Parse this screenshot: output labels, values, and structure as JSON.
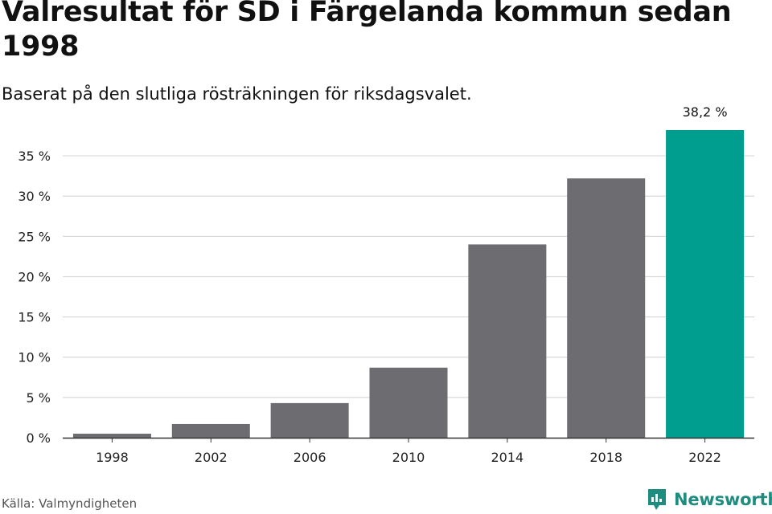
{
  "header": {
    "title": "Valresultat för SD i Färgelanda kommun sedan 1998",
    "subtitle": "Baserat på den slutliga rösträkningen för riksdagsvalet."
  },
  "footer": {
    "source": "Källa: Valmyndigheten",
    "brand": "Newsworthy",
    "brand_icon": "newsworthy-logo-icon"
  },
  "colors": {
    "bar_default": "#6d6c71",
    "bar_highlight": "#009e8e",
    "grid": "#d9d9d9",
    "axis": "#333333",
    "brand": "#1f8c80"
  },
  "chart_data": {
    "type": "bar",
    "categories": [
      "1998",
      "2002",
      "2006",
      "2010",
      "2014",
      "2018",
      "2022"
    ],
    "values": [
      0.5,
      1.7,
      4.3,
      8.7,
      24.0,
      32.2,
      38.2
    ],
    "highlight_index": 6,
    "data_labels": {
      "6": "38,2 %"
    },
    "ylim": [
      0,
      38.2
    ],
    "yticks": [
      0,
      5,
      10,
      15,
      20,
      25,
      30,
      35
    ],
    "ytick_labels": [
      "0 %",
      "5 %",
      "10 %",
      "15 %",
      "20 %",
      "25 %",
      "30 %",
      "35 %"
    ],
    "grid": true,
    "xlabel": "",
    "ylabel": ""
  }
}
